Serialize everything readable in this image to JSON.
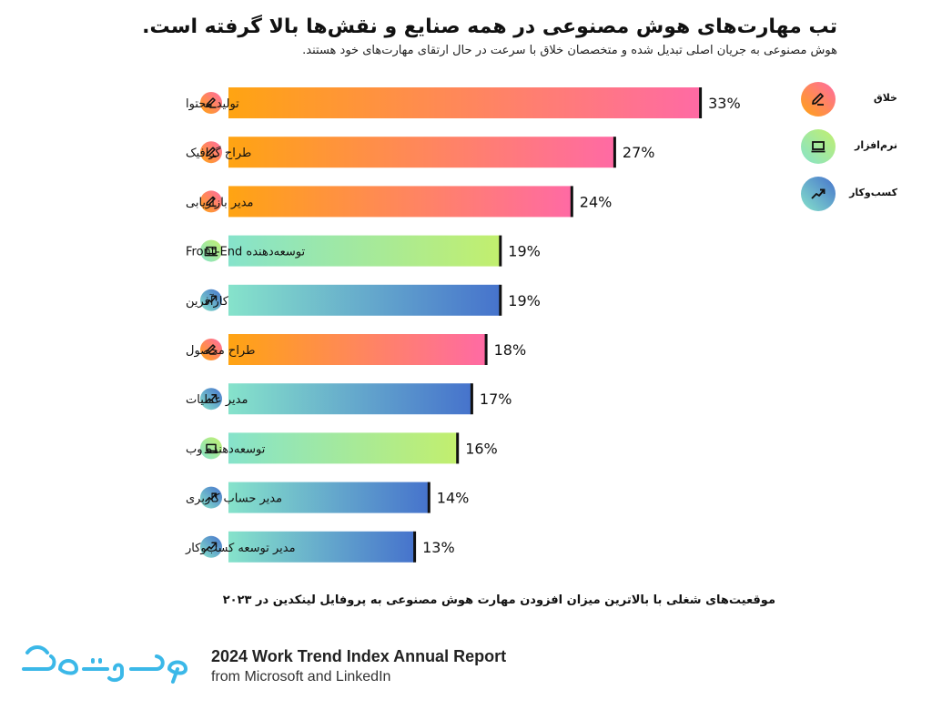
{
  "header": {
    "title": "تب مهارت‌های هوش مصنوعی در همه صنایع و نقش‌ها بالا گرفته است.",
    "subtitle": "هوش مصنوعی به جریان اصلی تبدیل شده و متخصصان خلاق با سرعت در حال ارتقای مهارت‌های خود هستند."
  },
  "legend": [
    {
      "label": "خلاق",
      "icon": "pencil-icon",
      "colors": [
        "#ffa412",
        "#ff6aa4"
      ]
    },
    {
      "label": "نرم‌افزار",
      "icon": "laptop-icon",
      "colors": [
        "#86e3cb",
        "#c2ef6e"
      ]
    },
    {
      "label": "کسب‌وکار",
      "icon": "trend-up-icon",
      "colors": [
        "#86e3cb",
        "#4673cc"
      ]
    }
  ],
  "chart_data": {
    "type": "bar",
    "orientation": "horizontal",
    "unit": "%",
    "categories": [
      "تولید محتوا",
      "طراح گرافیک",
      "مدیر بازاریابی",
      "توسعه‌دهنده Front-End",
      "کارآفرین",
      "طراح محصول",
      "مدیر عملیات",
      "توسعه‌دهنده وب",
      "مدیر حساب کاربری",
      "مدیر توسعه کسب‌وکار"
    ],
    "values": [
      33,
      27,
      24,
      19,
      19,
      18,
      17,
      16,
      14,
      13
    ],
    "groups": [
      "creative",
      "creative",
      "creative",
      "software",
      "business",
      "creative",
      "business",
      "software",
      "business",
      "business"
    ],
    "value_labels": [
      "33%",
      "27%",
      "24%",
      "19%",
      "19%",
      "18%",
      "17%",
      "16%",
      "14%",
      "13%"
    ],
    "group_colors": {
      "creative": [
        "#ffa412",
        "#ff6aa4"
      ],
      "software": [
        "#86e3cb",
        "#c2ef6e"
      ],
      "business": [
        "#86e3cb",
        "#4673cc"
      ]
    },
    "group_icons": {
      "creative": "pencil-icon",
      "software": "laptop-icon",
      "business": "trend-up-icon"
    },
    "title": "",
    "xlabel": "",
    "ylabel": "",
    "legend_position": "right",
    "grid": false
  },
  "caption": "موقعیت‌های شغلی با بالاترین میزان افزودن مهارت هوش مصنوعی به پروفایل لینکدین در ۲۰۲۳",
  "footer": {
    "logo_text": "تموشیو",
    "report_title": "2024 Work Trend Index Annual Report",
    "report_sub": "from Microsoft and LinkedIn"
  }
}
